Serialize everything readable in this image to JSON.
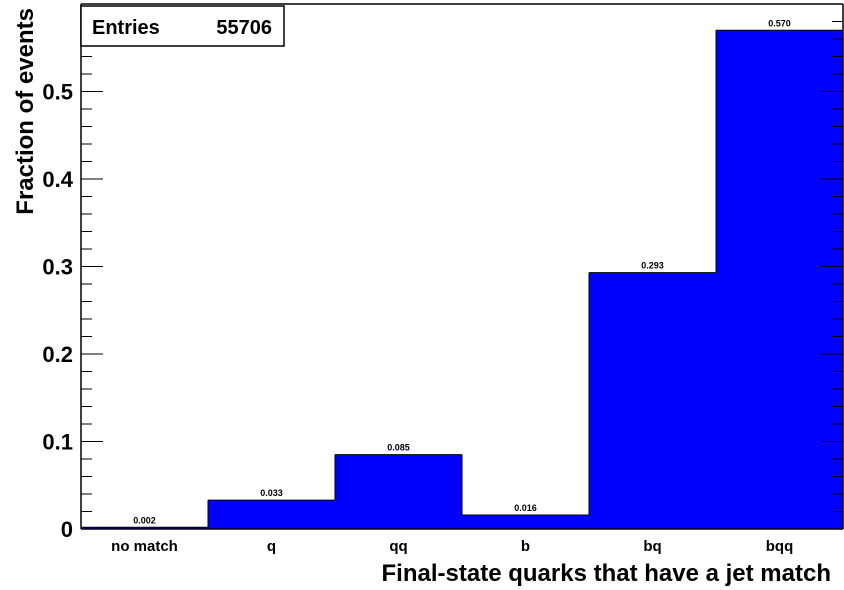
{
  "chart_data": {
    "type": "bar",
    "title": "",
    "xlabel": "Final-state quarks that have a jet match",
    "ylabel": "Fraction of events",
    "categories": [
      "no match",
      "q",
      "qq",
      "b",
      "bq",
      "bqq"
    ],
    "values": [
      0.002,
      0.033,
      0.085,
      0.016,
      0.293,
      0.57
    ],
    "value_labels": [
      "0.002",
      "0.033",
      "0.085",
      "0.016",
      "0.293",
      "0.570"
    ],
    "ylim": [
      0,
      0.6
    ],
    "yticks": [
      0,
      0.1,
      0.2,
      0.3,
      0.4,
      0.5
    ],
    "ytick_labels": [
      "0",
      "0.1",
      "0.2",
      "0.3",
      "0.4",
      "0.5"
    ],
    "grid": false,
    "bar_color": "#0000ff",
    "stats_box": {
      "label": "Entries",
      "value": "55706"
    }
  }
}
